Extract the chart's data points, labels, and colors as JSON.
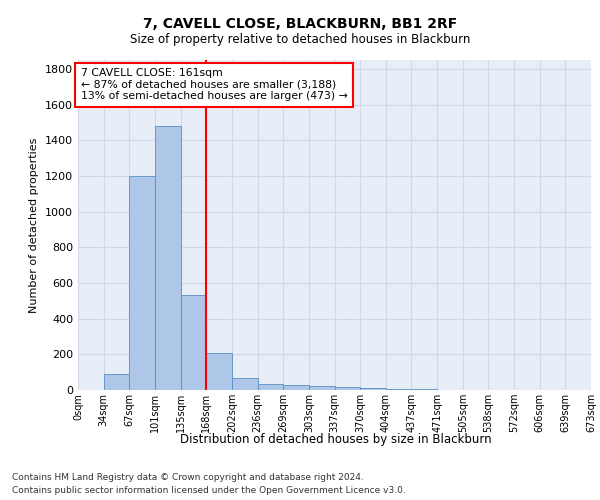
{
  "title1": "7, CAVELL CLOSE, BLACKBURN, BB1 2RF",
  "title2": "Size of property relative to detached houses in Blackburn",
  "xlabel": "Distribution of detached houses by size in Blackburn",
  "ylabel": "Number of detached properties",
  "footnote1": "Contains HM Land Registry data © Crown copyright and database right 2024.",
  "footnote2": "Contains public sector information licensed under the Open Government Licence v3.0.",
  "bin_labels": [
    "0sqm",
    "34sqm",
    "67sqm",
    "101sqm",
    "135sqm",
    "168sqm",
    "202sqm",
    "236sqm",
    "269sqm",
    "303sqm",
    "337sqm",
    "370sqm",
    "404sqm",
    "437sqm",
    "471sqm",
    "505sqm",
    "538sqm",
    "572sqm",
    "606sqm",
    "639sqm",
    "673sqm"
  ],
  "bar_values": [
    0,
    90,
    1200,
    1480,
    535,
    205,
    65,
    35,
    30,
    25,
    15,
    10,
    5,
    3,
    2,
    1,
    1,
    0,
    0,
    0
  ],
  "bar_color": "#aec6e8",
  "bar_edge_color": "#5a8fc2",
  "property_line_x": 5.0,
  "annotation_text_line1": "7 CAVELL CLOSE: 161sqm",
  "annotation_text_line2": "← 87% of detached houses are smaller (3,188)",
  "annotation_text_line3": "13% of semi-detached houses are larger (473) →",
  "ylim": [
    0,
    1850
  ],
  "yticks": [
    0,
    200,
    400,
    600,
    800,
    1000,
    1200,
    1400,
    1600,
    1800
  ],
  "grid_color": "#d0d8e8",
  "bg_color": "#e8eef8"
}
